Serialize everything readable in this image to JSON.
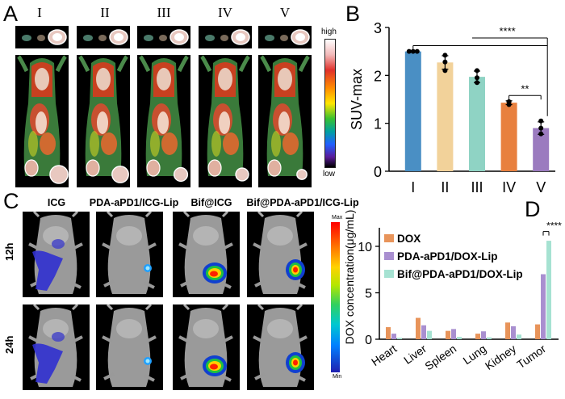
{
  "panels": {
    "a": {
      "letter": "A",
      "groups": [
        "I",
        "II",
        "III",
        "IV",
        "V"
      ],
      "colorbar": {
        "high": "high",
        "low": "low"
      }
    },
    "b": {
      "letter": "B"
    },
    "c": {
      "letter": "C",
      "columns": [
        "ICG",
        "PDA-aPD1/ICG-Lip",
        "Bif@ICG",
        "Bif@PDA-aPD1/ICG-Lip"
      ],
      "rows": [
        "12h",
        "24h"
      ],
      "colorbar": {
        "max": "Max",
        "min": "Min"
      }
    },
    "d": {
      "letter": "D"
    }
  },
  "chart_data": [
    {
      "id": "B",
      "type": "bar",
      "categories": [
        "I",
        "II",
        "III",
        "IV",
        "V"
      ],
      "values": [
        2.5,
        2.27,
        1.97,
        1.43,
        0.9
      ],
      "points": [
        [
          2.5,
          2.5,
          2.5
        ],
        [
          2.1,
          2.28,
          2.42
        ],
        [
          1.85,
          1.95,
          2.1
        ],
        [
          1.39,
          1.45,
          1.45
        ],
        [
          0.78,
          0.9,
          1.05
        ]
      ],
      "errors": [
        0.0,
        0.14,
        0.12,
        0.04,
        0.13
      ],
      "colors": [
        "#4a8fc4",
        "#f2d29a",
        "#8fd3c4",
        "#e8803f",
        "#9b7bbf"
      ],
      "ylabel": "SUV-max",
      "ylim": [
        0,
        3
      ],
      "yticks": [
        0,
        1,
        2,
        3
      ],
      "significance": [
        {
          "label": "****",
          "from": "I",
          "to": "V"
        },
        {
          "label": "**",
          "from": "IV",
          "to": "V"
        }
      ]
    },
    {
      "id": "D",
      "type": "bar",
      "categories": [
        "Heart",
        "Liver",
        "Spleen",
        "Lung",
        "Kidney",
        "Tumor"
      ],
      "series": [
        {
          "name": "DOX",
          "color": "#e8945a",
          "values": [
            1.3,
            2.3,
            0.9,
            0.6,
            1.8,
            1.6
          ]
        },
        {
          "name": "PDA-aPD1/DOX-Lip",
          "color": "#a98fd0",
          "values": [
            0.6,
            1.5,
            1.1,
            0.85,
            1.4,
            7.0
          ]
        },
        {
          "name": "Bif@PDA-aPD1/DOX-Lip",
          "color": "#a6e2d2",
          "values": [
            0.15,
            0.9,
            0.25,
            0.2,
            0.5,
            10.6
          ]
        }
      ],
      "ylabel": "DOX concentration(μg/mL)",
      "ylim": [
        0,
        12
      ],
      "yticks": [
        0,
        5,
        10
      ],
      "significance": [
        {
          "label": "****",
          "from": "PDA-aPD1/DOX-Lip",
          "to": "Bif@PDA-aPD1/DOX-Lip"
        }
      ]
    }
  ]
}
